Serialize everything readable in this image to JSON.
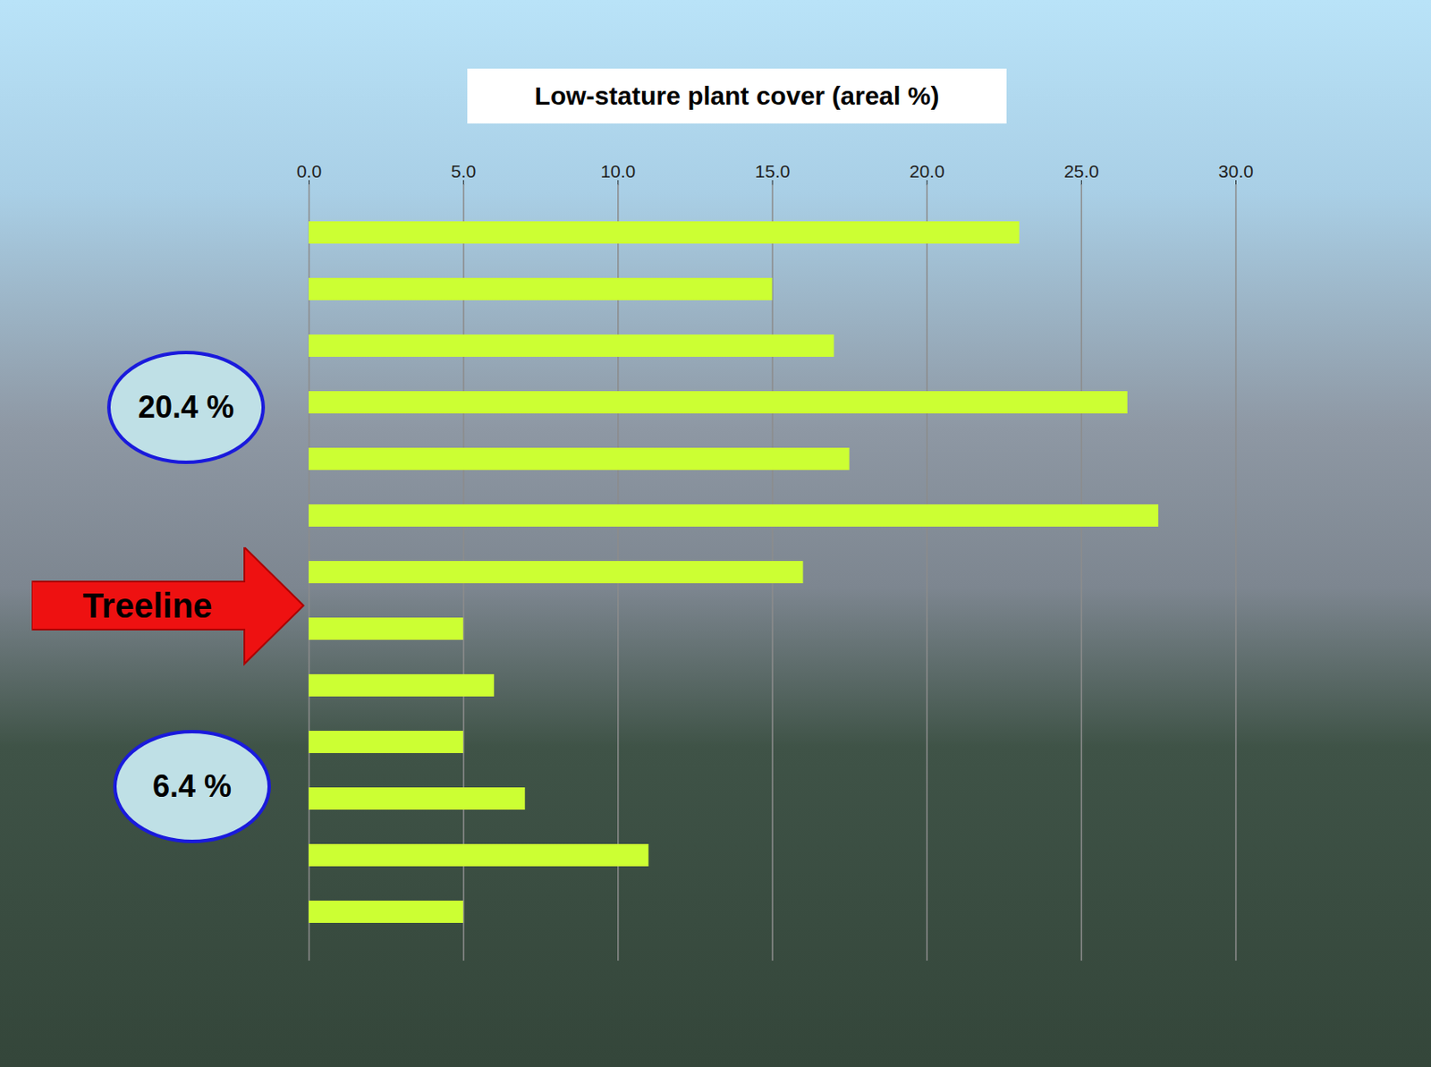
{
  "chart_data": {
    "type": "bar",
    "orientation": "horizontal",
    "title": "Low-stature plant cover (areal %)",
    "categories": [
      null,
      null,
      null,
      null,
      null,
      null,
      null,
      null,
      null,
      null,
      null,
      null,
      null
    ],
    "values": [
      23.0,
      15.0,
      17.0,
      26.5,
      17.5,
      27.5,
      16.0,
      5.0,
      6.0,
      5.0,
      7.0,
      11.0,
      5.0
    ],
    "color": "#ccff33",
    "xlim": [
      0,
      30
    ],
    "xticks": [
      {
        "value": 0,
        "label": "0.0"
      },
      {
        "value": 5,
        "label": "5.0"
      },
      {
        "value": 10,
        "label": "10.0"
      },
      {
        "value": 15,
        "label": "15.0"
      },
      {
        "value": 20,
        "label": "20.0"
      },
      {
        "value": 25,
        "label": "25.0"
      },
      {
        "value": 30,
        "label": "30.0"
      }
    ],
    "grid": true,
    "tick_labels": "x",
    "annotations": [
      "20.4 %",
      "6.4 %",
      "Treeline"
    ]
  }
}
